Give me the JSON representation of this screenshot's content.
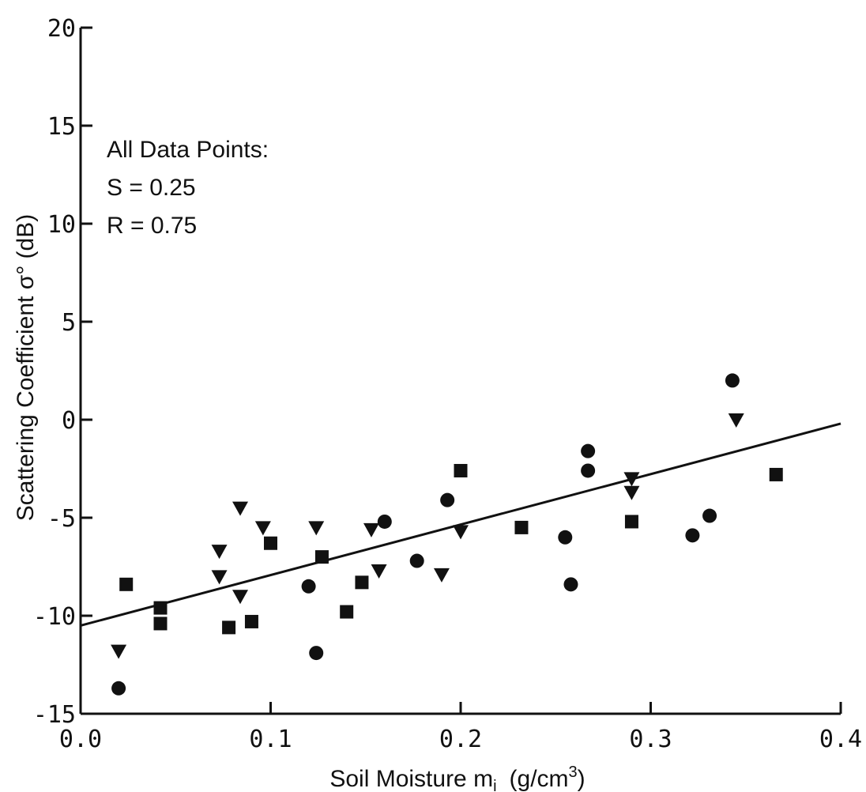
{
  "chart_data": {
    "type": "scatter",
    "title": "",
    "xlabel": "Soil Moisture m",
    "xlabel_subscript": "i",
    "xlabel_units": "(g/cm",
    "xlabel_units_sup": "3",
    "xlabel_units_close": ")",
    "ylabel": "Scattering Coefficient σ° (dB)",
    "xlim": [
      0.0,
      0.4
    ],
    "ylim": [
      -15,
      20
    ],
    "x_ticks": [
      0.0,
      0.1,
      0.2,
      0.3,
      0.4
    ],
    "x_tick_labels": [
      "0.0",
      "0.1",
      "0.2",
      "0.3",
      "0.4"
    ],
    "y_ticks": [
      -15,
      -10,
      -5,
      0,
      5,
      10,
      15,
      20
    ],
    "y_tick_labels": [
      "-15",
      "-10",
      "-5",
      "0",
      "5",
      "10",
      "15",
      "20"
    ],
    "grid": false,
    "annotation": {
      "heading": "All Data Points:",
      "line1": "S = 0.25",
      "line2": "R = 0.75"
    },
    "regression_line": {
      "x": [
        0.0,
        0.4
      ],
      "y": [
        -10.5,
        -0.2
      ]
    },
    "series": [
      {
        "marker": "circle",
        "points": [
          [
            0.02,
            -13.7
          ],
          [
            0.12,
            -8.5
          ],
          [
            0.124,
            -11.9
          ],
          [
            0.16,
            -5.2
          ],
          [
            0.177,
            -7.2
          ],
          [
            0.193,
            -4.1
          ],
          [
            0.255,
            -6.0
          ],
          [
            0.258,
            -8.4
          ],
          [
            0.267,
            -1.6
          ],
          [
            0.267,
            -2.6
          ],
          [
            0.322,
            -5.9
          ],
          [
            0.331,
            -4.9
          ],
          [
            0.343,
            2.0
          ]
        ]
      },
      {
        "marker": "square",
        "points": [
          [
            0.024,
            -8.4
          ],
          [
            0.042,
            -9.6
          ],
          [
            0.042,
            -10.4
          ],
          [
            0.078,
            -10.6
          ],
          [
            0.09,
            -10.3
          ],
          [
            0.1,
            -6.3
          ],
          [
            0.127,
            -7.0
          ],
          [
            0.14,
            -9.8
          ],
          [
            0.148,
            -8.3
          ],
          [
            0.2,
            -2.6
          ],
          [
            0.232,
            -5.5
          ],
          [
            0.29,
            -5.2
          ],
          [
            0.366,
            -2.8
          ]
        ]
      },
      {
        "marker": "triangle-down",
        "points": [
          [
            0.02,
            -11.8
          ],
          [
            0.073,
            -6.7
          ],
          [
            0.073,
            -8.0
          ],
          [
            0.084,
            -4.5
          ],
          [
            0.084,
            -9.0
          ],
          [
            0.096,
            -5.5
          ],
          [
            0.124,
            -5.5
          ],
          [
            0.153,
            -5.6
          ],
          [
            0.157,
            -7.7
          ],
          [
            0.19,
            -7.9
          ],
          [
            0.2,
            -5.7
          ],
          [
            0.29,
            -3.0
          ],
          [
            0.29,
            -3.7
          ],
          [
            0.345,
            0.0
          ]
        ]
      }
    ]
  }
}
